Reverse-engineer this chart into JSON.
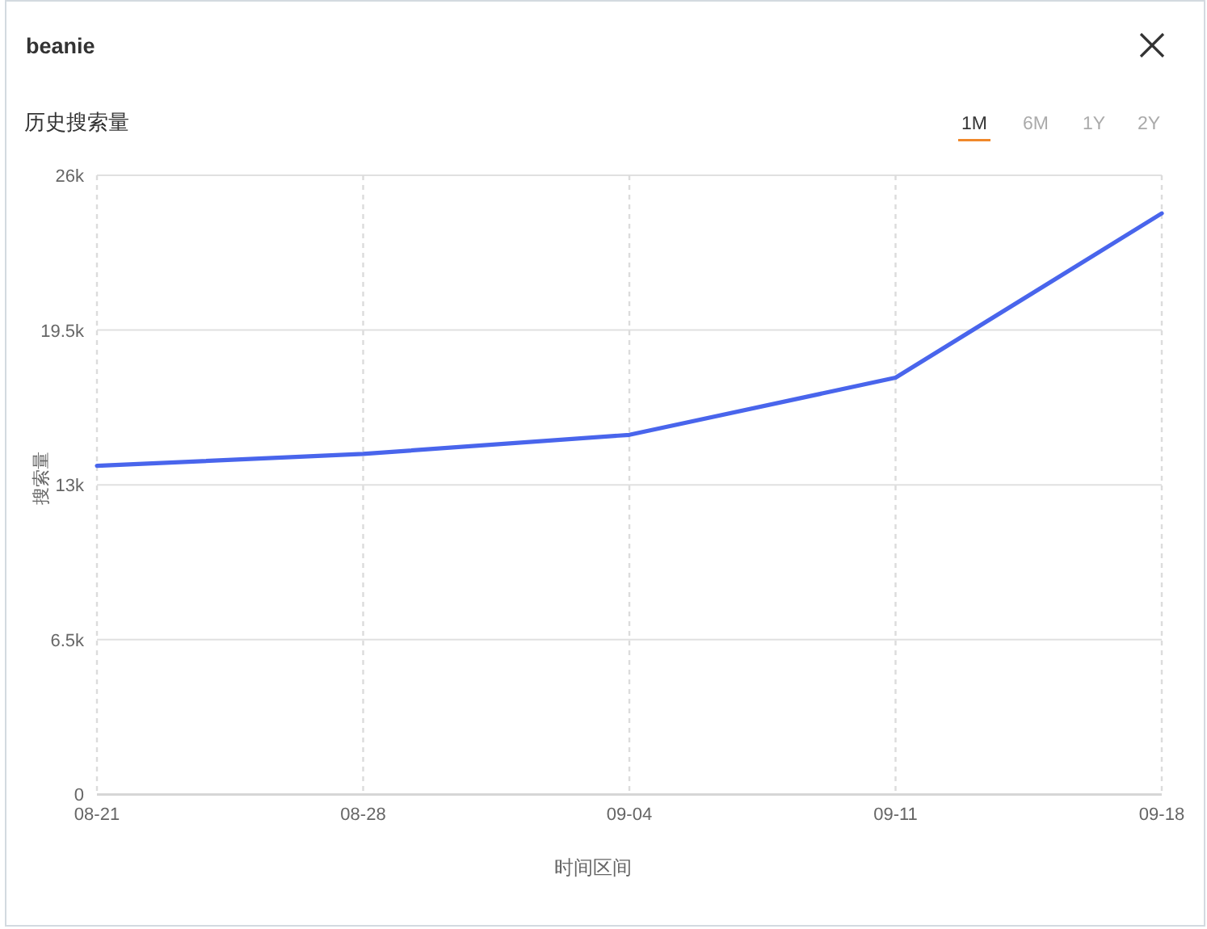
{
  "chart_data": {
    "type": "line",
    "title": "beanie",
    "subtitle": "历史搜索量",
    "xlabel": "时间区间",
    "ylabel": "搜索量",
    "categories": [
      "08-21",
      "08-28",
      "09-04",
      "09-11",
      "09-18"
    ],
    "values": [
      13800,
      14300,
      15100,
      17500,
      24400
    ],
    "color": "#4965ec",
    "ylim": [
      0,
      26000
    ],
    "yticks": [
      0,
      {
        "value": 6500,
        "label": "6.5k"
      },
      {
        "value": 13000,
        "label": "13k"
      },
      {
        "value": 19500,
        "label": "19.5k"
      },
      {
        "value": 26000,
        "label": "26k"
      }
    ],
    "grid": true,
    "annotations": [
      "1M",
      "6M",
      "1Y",
      "2Y"
    ]
  }
}
